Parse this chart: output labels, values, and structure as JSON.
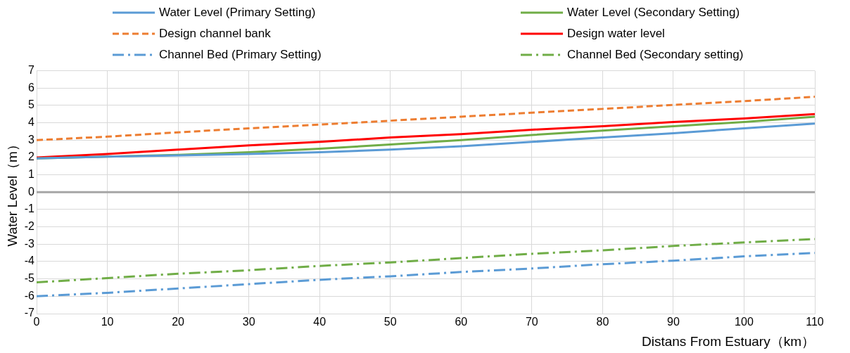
{
  "chart_data": {
    "type": "line",
    "xlabel": "Distans From Estuary（km）",
    "ylabel": "Water Level（m）",
    "x": [
      0,
      10,
      20,
      30,
      40,
      50,
      60,
      70,
      80,
      90,
      100,
      110
    ],
    "xlim": [
      0,
      110
    ],
    "xticks": [
      0,
      10,
      20,
      30,
      40,
      50,
      60,
      70,
      80,
      90,
      100,
      110
    ],
    "ylim": [
      -7,
      7
    ],
    "yticks": [
      -7,
      -6,
      -5,
      -4,
      -3,
      -2,
      -1,
      0,
      1,
      2,
      3,
      4,
      5,
      6,
      7
    ],
    "grid": true,
    "legend": "top",
    "marker": "none",
    "ref_lines": [
      {
        "axis": "y",
        "value": 0,
        "color": "#a6a6a6"
      }
    ],
    "series": [
      {
        "name": "Water Level (Primary Setting)",
        "color": "#5b9bd5",
        "line_style": "solid",
        "values": [
          1.95,
          2.05,
          2.12,
          2.2,
          2.3,
          2.45,
          2.65,
          2.9,
          3.15,
          3.4,
          3.68,
          3.95
        ]
      },
      {
        "name": "Water Level (Secondary Setting)",
        "color": "#70ad47",
        "line_style": "solid",
        "values": [
          1.95,
          2.05,
          2.15,
          2.3,
          2.5,
          2.75,
          3.0,
          3.3,
          3.55,
          3.8,
          4.05,
          4.35
        ]
      },
      {
        "name": "Design channel bank",
        "color": "#ed7d31",
        "line_style": "dashed",
        "values": [
          3.0,
          3.2,
          3.45,
          3.68,
          3.9,
          4.12,
          4.35,
          4.58,
          4.8,
          5.03,
          5.25,
          5.5
        ]
      },
      {
        "name": "Design water level",
        "color": "#ff0000",
        "line_style": "solid",
        "values": [
          2.0,
          2.2,
          2.45,
          2.7,
          2.9,
          3.15,
          3.35,
          3.6,
          3.8,
          4.05,
          4.25,
          4.5
        ]
      },
      {
        "name": "Channel Bed (Primary Setting)",
        "color": "#5b9bd5",
        "line_style": "dashdot",
        "values": [
          -6.0,
          -5.8,
          -5.55,
          -5.3,
          -5.05,
          -4.85,
          -4.6,
          -4.4,
          -4.15,
          -3.95,
          -3.7,
          -3.5
        ]
      },
      {
        "name": "Channel Bed (Secondary setting)",
        "color": "#70ad47",
        "line_style": "dashdot",
        "values": [
          -5.2,
          -4.95,
          -4.7,
          -4.5,
          -4.25,
          -4.05,
          -3.8,
          -3.55,
          -3.35,
          -3.1,
          -2.9,
          -2.7
        ]
      }
    ]
  }
}
